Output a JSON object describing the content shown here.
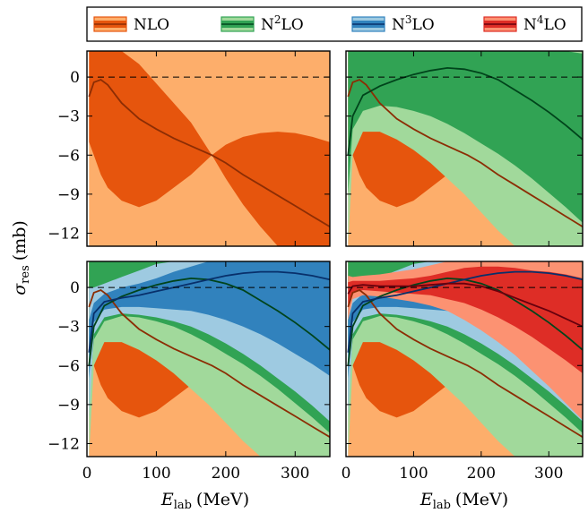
{
  "colors": {
    "NLO": {
      "dark": "#e6550d",
      "light": "#fdae6b",
      "line": "#8c2d04"
    },
    "N2LO": {
      "dark": "#31a354",
      "light": "#a1d99b",
      "line": "#00441b"
    },
    "N3LO": {
      "dark": "#3182bd",
      "light": "#9ecae1",
      "line": "#08306b"
    },
    "N4LO": {
      "dark": "#de2d26",
      "light": "#fc9272",
      "line": "#67000d"
    }
  },
  "legend": [
    {
      "key": "NLO",
      "base": "NLO",
      "sup": ""
    },
    {
      "key": "N2LO",
      "base": "N",
      "sup": "2",
      "tail": "LO"
    },
    {
      "key": "N3LO",
      "base": "N",
      "sup": "3",
      "tail": "LO"
    },
    {
      "key": "N4LO",
      "base": "N",
      "sup": "4",
      "tail": "LO"
    }
  ],
  "axes": {
    "ylabel_main": "σ",
    "ylabel_sub": "res",
    "ylabel_unit": "(mb)",
    "xlabel_main": "E",
    "xlabel_sub": "lab",
    "xlabel_unit": "(MeV)"
  },
  "chart_data": {
    "type": "area",
    "xlim": [
      0,
      350
    ],
    "ylim": [
      -13,
      2
    ],
    "xticks": [
      0,
      100,
      200,
      300
    ],
    "yticks": [
      0,
      -3,
      -6,
      -9,
      -12
    ],
    "xtick_labels": [
      "0",
      "100",
      "200",
      "300"
    ],
    "ytick_labels": [
      "0",
      "−3",
      "−6",
      "−9",
      "−12"
    ],
    "reference_line_y": 0,
    "panels": [
      {
        "orders": [
          "NLO"
        ]
      },
      {
        "orders": [
          "NLO",
          "N2LO"
        ]
      },
      {
        "orders": [
          "NLO",
          "N2LO",
          "N3LO"
        ]
      },
      {
        "orders": [
          "NLO",
          "N2LO",
          "N3LO",
          "N4LO"
        ]
      }
    ],
    "series": [
      {
        "name": "NLO",
        "x": [
          3,
          10,
          20,
          30,
          50,
          75,
          100,
          125,
          150,
          180,
          200,
          225,
          250,
          275,
          300,
          325,
          350
        ],
        "center": [
          -1.5,
          -0.4,
          -0.2,
          -0.6,
          -2.0,
          -3.2,
          -4.0,
          -4.7,
          -5.3,
          -6.0,
          -6.6,
          -7.5,
          -8.3,
          -9.1,
          -9.9,
          -10.7,
          -11.5
        ],
        "band68_lo": [
          -5.0,
          -6.0,
          -7.5,
          -8.5,
          -9.5,
          -10.0,
          -9.5,
          -8.5,
          -7.5,
          -6.0,
          -5.2,
          -4.6,
          -4.3,
          -4.2,
          -4.3,
          -4.6,
          -5.0
        ],
        "band68_hi": [
          2.0,
          2.0,
          2.0,
          2.0,
          2.0,
          1.0,
          -0.5,
          -2.0,
          -3.5,
          -6.0,
          -7.8,
          -9.8,
          -11.5,
          -13.0,
          -13.0,
          -13.0,
          -13.0
        ],
        "band95_lo": [
          -13,
          -13,
          -13,
          -13,
          -13,
          -13,
          -13,
          -13,
          -13,
          -13,
          -13,
          -13,
          -13,
          -13,
          -13,
          -13,
          -13
        ],
        "band95_hi": [
          2,
          2,
          2,
          2,
          2,
          2,
          2,
          2,
          2,
          2,
          2,
          2,
          2,
          2,
          2,
          2,
          2
        ]
      },
      {
        "name": "N2LO",
        "x": [
          3,
          10,
          25,
          50,
          75,
          100,
          125,
          150,
          175,
          200,
          225,
          250,
          275,
          300,
          325,
          350
        ],
        "center": [
          -6.0,
          -3.0,
          -1.4,
          -0.7,
          -0.2,
          0.2,
          0.5,
          0.7,
          0.6,
          0.3,
          -0.2,
          -1.0,
          -1.8,
          -2.7,
          -3.7,
          -4.8
        ],
        "band68_lo": [
          -9.0,
          -4.0,
          -2.6,
          -2.2,
          -2.3,
          -2.6,
          -3.0,
          -3.6,
          -4.3,
          -5.1,
          -5.9,
          -6.8,
          -7.8,
          -8.9,
          -10.0,
          -11.2
        ],
        "band68_hi": [
          2.0,
          2.0,
          2.0,
          2.0,
          2.0,
          2.0,
          2.0,
          2.0,
          2.0,
          2.0,
          2.0,
          2.0,
          2.0,
          2.0,
          2.0,
          1.8
        ],
        "band95_lo": [
          -13,
          -6.0,
          -4.2,
          -4.2,
          -4.8,
          -5.6,
          -6.6,
          -7.8,
          -9.0,
          -10.4,
          -11.8,
          -13.0,
          -13.0,
          -13.0,
          -13.0,
          -13.0
        ],
        "band95_hi": [
          2,
          2,
          2,
          2,
          2,
          2,
          2,
          2,
          2,
          2,
          2,
          2,
          2,
          2,
          2,
          2
        ]
      },
      {
        "name": "N3LO",
        "x": [
          3,
          10,
          25,
          50,
          75,
          100,
          125,
          150,
          175,
          200,
          225,
          250,
          275,
          300,
          325,
          350
        ],
        "center": [
          -5.0,
          -2.0,
          -1.1,
          -0.8,
          -0.6,
          -0.3,
          0.0,
          0.3,
          0.6,
          0.9,
          1.1,
          1.2,
          1.2,
          1.1,
          0.9,
          0.6
        ],
        "band68_lo": [
          -7.0,
          -2.7,
          -1.7,
          -1.5,
          -1.5,
          -1.6,
          -1.7,
          -1.8,
          -2.1,
          -2.5,
          -3.0,
          -3.6,
          -4.3,
          -5.1,
          -5.9,
          -6.8
        ],
        "band68_hi": [
          -2.5,
          -1.2,
          -0.5,
          0.0,
          0.3,
          0.7,
          1.2,
          1.6,
          2.0,
          2.0,
          2.0,
          2.0,
          2.0,
          2.0,
          2.0,
          2.0
        ],
        "band95_lo": [
          -10.0,
          -3.6,
          -2.3,
          -2.0,
          -2.1,
          -2.3,
          -2.6,
          -3.0,
          -3.6,
          -4.3,
          -5.1,
          -6.0,
          -7.0,
          -8.0,
          -9.1,
          -10.3
        ],
        "band95_hi": [
          0.0,
          0.0,
          0.3,
          0.8,
          1.3,
          1.8,
          2.0,
          2.0,
          2.0,
          2.0,
          2.0,
          2.0,
          2.0,
          2.0,
          2.0,
          2.0
        ]
      },
      {
        "name": "N4LO",
        "x": [
          3,
          10,
          25,
          50,
          75,
          100,
          125,
          150,
          175,
          200,
          225,
          250,
          275,
          300,
          325,
          350
        ],
        "center": [
          -0.5,
          0.1,
          0.2,
          0.1,
          0.1,
          0.1,
          0.2,
          0.3,
          0.3,
          0.1,
          -0.3,
          -0.8,
          -1.3,
          -1.8,
          -2.4,
          -3.0
        ],
        "band68_lo": [
          -1.5,
          -0.4,
          -0.2,
          -0.3,
          -0.4,
          -0.5,
          -0.6,
          -0.9,
          -1.2,
          -1.7,
          -2.3,
          -3.0,
          -3.8,
          -4.7,
          -5.6,
          -6.6
        ],
        "band68_hi": [
          0.4,
          0.5,
          0.5,
          0.5,
          0.6,
          0.7,
          0.9,
          1.2,
          1.5,
          1.6,
          1.6,
          1.5,
          1.3,
          1.2,
          1.0,
          0.7
        ],
        "band95_lo": [
          -2.5,
          -0.9,
          -0.6,
          -0.7,
          -0.9,
          -1.1,
          -1.4,
          -1.8,
          -2.5,
          -3.3,
          -4.2,
          -5.2,
          -6.4,
          -7.6,
          -8.9,
          -10.2
        ],
        "band95_hi": [
          0.9,
          0.8,
          0.9,
          1.0,
          1.2,
          1.4,
          1.7,
          2.0,
          2.0,
          2.0,
          2.0,
          2.0,
          2.0,
          2.0,
          2.0,
          2.0
        ]
      }
    ]
  }
}
